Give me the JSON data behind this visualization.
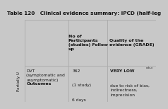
{
  "title": "Table 120   Clinical evidence summary: IPCD (half-leg",
  "title_fontsize": 5.2,
  "outer_bg": "#c8c8c8",
  "title_bg": "#b8b8b8",
  "table_bg": "#f0ebe4",
  "header_bg": "#c8c8c8",
  "side_bg": "#ffffff",
  "col_header_0": "Outcomes",
  "col_header_1": "No of\nParticipants\n(studies) Follow\nup",
  "col_header_2": "Quality of the\nevidence (GRADE)",
  "row_label": "DVT\n(symptomatic and\nasymptomatic)",
  "col2_line1": "362",
  "col2_line2": "(1 study)",
  "col2_line3": "6 days",
  "col3_line1": "VERY LOW",
  "col3_superscript": "a,b,c",
  "col3_line2": "due to risk of bias,\nindirectness,\nimprecision",
  "side_label": "Partially U",
  "border_color": "#aaaaaa",
  "text_color": "#1a1a1a",
  "bold_color": "#111111"
}
